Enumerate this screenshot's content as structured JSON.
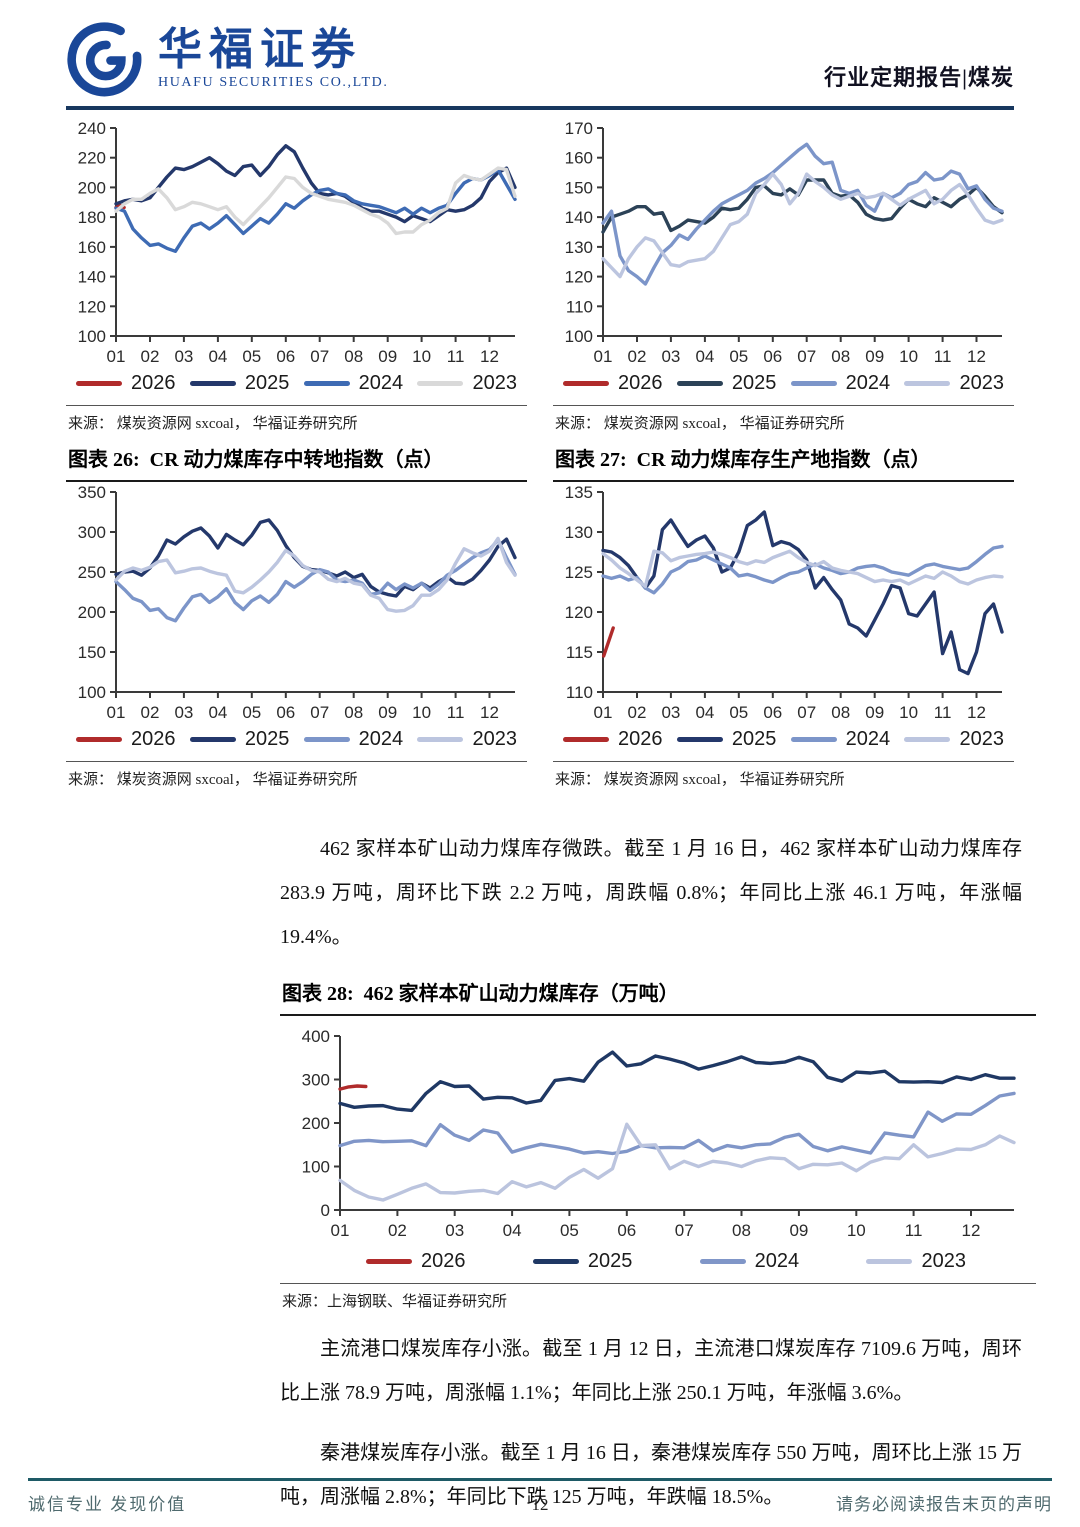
{
  "header": {
    "logo_title": "华福证券",
    "logo_subtitle": "HUAFU SECURITIES CO.,LTD.",
    "report_tag": "行业定期报告|煤炭",
    "brand_color": "#1A4798"
  },
  "paragraphs": {
    "mine_inventory": "462 家样本矿山动力煤库存微跌。截至 1 月 16 日，462 家样本矿山动力煤库存 283.9 万吨，周环比下跌 2.2 万吨，周跌幅 0.8%；年同比上涨 46.1 万吨，年涨幅 19.4%。",
    "port_inventory": "主流港口煤炭库存小涨。截至 1 月 12 日，主流港口煤炭库存 7109.6 万吨，周环比上涨 78.9 万吨，周涨幅 1.1%；年同比上涨 250.1 万吨，年涨幅 3.6%。",
    "qinport_inventory": "秦港煤炭库存小涨。截至 1 月 16 日，秦港煤炭库存 550 万吨，周环比上涨 15 万吨，周涨幅 2.8%；年同比下跌 125 万吨，年跌幅 18.5%。"
  },
  "footer": {
    "left": "诚信专业 发现价值",
    "page": "12",
    "right": "请务必阅读报告末页的声明"
  },
  "chart_data": [
    {
      "type": "line",
      "figure_label": "",
      "title": "",
      "source": "来源： 煤炭资源网 sxcoal， 华福证券研究所",
      "ylim": [
        100,
        240
      ],
      "yticks": [
        100,
        120,
        140,
        160,
        180,
        200,
        220,
        240
      ],
      "x_range": [
        1,
        12.75
      ],
      "xtick_labels": [
        "01",
        "02",
        "03",
        "04",
        "05",
        "06",
        "07",
        "08",
        "09",
        "10",
        "11",
        "12"
      ],
      "legend_position": "bottom",
      "grid": false,
      "series": [
        {
          "name": "2026",
          "color": "#B02B2B",
          "x": [
            1.0,
            1.12,
            1.24
          ],
          "values": [
            186.5,
            188,
            186.5
          ]
        },
        {
          "name": "2025",
          "color": "#24386B",
          "x_start": 1.0,
          "x_step": 0.25,
          "values": [
            189,
            191,
            192,
            191,
            193,
            200,
            207,
            213,
            212,
            214,
            217,
            220,
            216,
            211,
            208,
            214,
            215,
            208,
            214,
            222,
            228,
            224,
            213,
            203,
            196,
            195,
            196,
            194,
            190,
            186,
            184,
            184,
            182,
            180,
            177,
            181,
            179,
            177,
            181,
            185,
            184,
            185,
            188,
            193,
            204,
            210,
            213,
            200
          ]
        },
        {
          "name": "2024",
          "color": "#3E6BB4",
          "x_start": 1.0,
          "x_step": 0.25,
          "values": [
            186,
            184,
            172,
            166,
            161,
            162,
            159,
            157,
            166,
            174,
            176,
            172,
            176,
            181,
            175,
            169,
            174,
            179,
            176,
            182,
            189,
            186,
            191,
            195,
            198,
            199,
            196,
            195,
            191,
            189,
            188,
            187,
            185,
            183,
            186,
            182,
            186,
            183,
            186,
            188,
            196,
            203,
            206,
            205,
            208,
            212,
            202,
            192
          ]
        },
        {
          "name": "2023",
          "color": "#D9D9D9",
          "x_start": 1.0,
          "x_step": 0.25,
          "values": [
            184,
            189,
            192,
            192,
            196,
            199,
            193,
            185,
            187,
            190,
            189,
            187,
            185,
            187,
            180,
            175,
            181,
            187,
            193,
            200,
            207,
            206,
            200,
            196,
            194,
            192,
            191,
            190,
            188,
            185,
            182,
            180,
            176,
            169,
            170,
            170,
            175,
            178,
            183,
            186,
            203,
            208,
            206,
            205,
            209,
            213,
            212,
            194
          ]
        }
      ]
    },
    {
      "type": "line",
      "figure_label": "",
      "title": "",
      "source": "来源： 煤炭资源网 sxcoal， 华福证券研究所",
      "ylim": [
        100,
        170
      ],
      "yticks": [
        100,
        110,
        120,
        130,
        140,
        150,
        160,
        170
      ],
      "x_range": [
        1,
        12.75
      ],
      "xtick_labels": [
        "01",
        "02",
        "03",
        "04",
        "05",
        "06",
        "07",
        "08",
        "09",
        "10",
        "11",
        "12"
      ],
      "legend_position": "bottom",
      "grid": false,
      "series": [
        {
          "name": "2026",
          "color": "#B02B2B",
          "x": [],
          "values": []
        },
        {
          "name": "2025",
          "color": "#2C4257",
          "x_start": 1.0,
          "x_step": 0.25,
          "values": [
            135,
            140,
            141,
            142,
            143.5,
            143.5,
            141,
            141.5,
            135.5,
            137,
            139,
            138.5,
            138,
            140,
            143,
            142.5,
            143,
            146,
            150,
            150.5,
            148,
            147.5,
            149.5,
            147.5,
            152.5,
            152.5,
            152.5,
            148,
            147,
            147.5,
            145,
            141,
            139.5,
            139,
            139.5,
            143,
            146,
            144.5,
            143.5,
            146.5,
            145,
            143.5,
            146,
            147.5,
            150,
            147,
            143.5,
            141.5
          ]
        },
        {
          "name": "2024",
          "color": "#7C95C9",
          "x_start": 1.0,
          "x_step": 0.25,
          "values": [
            138,
            142,
            127,
            122,
            120,
            117.5,
            123,
            128,
            130.5,
            134,
            132.5,
            136,
            139,
            142,
            144.5,
            146,
            147.5,
            149,
            151.5,
            153,
            155,
            157.5,
            160,
            162.5,
            164.5,
            160.5,
            158,
            158.5,
            149,
            148,
            149,
            144,
            142,
            148,
            146.5,
            148,
            151,
            152,
            155,
            152.5,
            153,
            155.5,
            154.5,
            149.5,
            150.5,
            146,
            143,
            142
          ]
        },
        {
          "name": "2023",
          "color": "#BCC5DF",
          "x_start": 1.0,
          "x_step": 0.25,
          "values": [
            126,
            123,
            120,
            126,
            130,
            133,
            132,
            128,
            124,
            123.5,
            125,
            125.5,
            126,
            128.5,
            133,
            137.5,
            138.5,
            141,
            148,
            151,
            154.5,
            151,
            144.5,
            148,
            154.5,
            152,
            150,
            147.5,
            146,
            147,
            148,
            146.5,
            147,
            148,
            146,
            144,
            146,
            147.5,
            149,
            144.5,
            146,
            149,
            151,
            147.5,
            143,
            139,
            138,
            139
          ]
        }
      ]
    },
    {
      "type": "line",
      "figure_label": "图表 26:",
      "title": "CR 动力煤库存中转地指数（点）",
      "source": "来源： 煤炭资源网 sxcoal， 华福证券研究所",
      "ylim": [
        100,
        350
      ],
      "yticks": [
        100,
        150,
        200,
        250,
        300,
        350
      ],
      "x_range": [
        1,
        12.75
      ],
      "xtick_labels": [
        "01",
        "02",
        "03",
        "04",
        "05",
        "06",
        "07",
        "08",
        "09",
        "10",
        "11",
        "12"
      ],
      "legend_position": "bottom",
      "grid": false,
      "series": [
        {
          "name": "2026",
          "color": "#B02B2B",
          "x": [],
          "values": []
        },
        {
          "name": "2025",
          "color": "#24386B",
          "x_start": 1.0,
          "x_step": 0.25,
          "values": [
            247,
            250,
            251,
            246,
            255,
            270,
            290,
            285,
            294,
            301,
            305,
            295,
            280,
            297,
            290,
            284,
            296,
            312,
            315,
            302,
            283,
            268,
            257,
            253,
            252,
            249,
            245,
            250,
            243,
            247,
            232,
            225,
            222,
            220,
            232,
            228,
            236,
            230,
            238,
            244,
            236,
            235,
            241,
            252,
            265,
            282,
            291,
            268
          ]
        },
        {
          "name": "2024",
          "color": "#7C95C9",
          "x_start": 1.0,
          "x_step": 0.25,
          "values": [
            238,
            228,
            217,
            213,
            202,
            204,
            193,
            189,
            205,
            219,
            222,
            212,
            219,
            229,
            212,
            203,
            214,
            220,
            212,
            222,
            238,
            231,
            238,
            247,
            253,
            250,
            240,
            238,
            240,
            236,
            222,
            224,
            236,
            228,
            235,
            230,
            236,
            227,
            235,
            246,
            252,
            260,
            268,
            274,
            278,
            290,
            268,
            247
          ]
        },
        {
          "name": "2023",
          "color": "#BCC5DF",
          "x_start": 1.0,
          "x_step": 0.25,
          "values": [
            240,
            251,
            255,
            252,
            256,
            263,
            265,
            249,
            251,
            254,
            255,
            251,
            248,
            246,
            226,
            224,
            231,
            240,
            250,
            262,
            277,
            270,
            258,
            252,
            250,
            241,
            238,
            242,
            236,
            234,
            221,
            217,
            203,
            201,
            202,
            208,
            221,
            221,
            228,
            240,
            261,
            279,
            274,
            270,
            276,
            292,
            262,
            246
          ]
        }
      ]
    },
    {
      "type": "line",
      "figure_label": "图表 27:",
      "title": "CR 动力煤库存生产地指数（点）",
      "source": "来源： 煤炭资源网 sxcoal， 华福证券研究所",
      "ylim": [
        110,
        135
      ],
      "yticks": [
        110,
        115,
        120,
        125,
        130,
        135
      ],
      "x_range": [
        1,
        12.75
      ],
      "xtick_labels": [
        "01",
        "02",
        "03",
        "04",
        "05",
        "06",
        "07",
        "08",
        "09",
        "10",
        "11",
        "12"
      ],
      "legend_position": "bottom",
      "grid": false,
      "series": [
        {
          "name": "2026",
          "color": "#B02B2B",
          "x": [
            1.02,
            1.3
          ],
          "values": [
            114.5,
            118
          ]
        },
        {
          "name": "2025",
          "color": "#24386B",
          "x_start": 1.0,
          "x_step": 0.25,
          "values": [
            127.7,
            127.5,
            126.8,
            125.8,
            124.3,
            123,
            124.5,
            130.3,
            131.5,
            129.8,
            128.2,
            129,
            129.5,
            128,
            125,
            125.5,
            127.5,
            130.8,
            131.5,
            132.5,
            128.3,
            128.8,
            128.5,
            127.8,
            126.5,
            123,
            124.3,
            122.8,
            121.5,
            118.5,
            118,
            117,
            119,
            121,
            123.3,
            123,
            119.8,
            119.5,
            121,
            122.5,
            114.8,
            117.5,
            112.8,
            112.3,
            115,
            119.8,
            121,
            117.5
          ]
        },
        {
          "name": "2024",
          "color": "#7C95C9",
          "x_start": 1.0,
          "x_step": 0.25,
          "values": [
            124.5,
            124.2,
            124.5,
            124,
            124.3,
            123,
            122.4,
            123.5,
            125,
            125.5,
            126.3,
            126.5,
            127,
            126.5,
            126,
            125.5,
            124.5,
            124.7,
            124.4,
            124,
            123.7,
            124.3,
            124.8,
            125,
            125.5,
            126,
            125.5,
            125.2,
            124.8,
            125,
            125.5,
            125.7,
            125.8,
            125.5,
            125,
            124.8,
            124.6,
            125.2,
            125.8,
            126,
            125.7,
            125.5,
            125.3,
            125.5,
            126.3,
            127.2,
            128,
            128.2
          ]
        },
        {
          "name": "2023",
          "color": "#BCC5DF",
          "x_start": 1.0,
          "x_step": 0.25,
          "values": [
            127.3,
            126.5,
            125.5,
            124.8,
            124,
            123.2,
            127.6,
            127.4,
            126.4,
            126.8,
            127,
            127.2,
            127.3,
            127.5,
            127.2,
            126.8,
            126.3,
            126,
            126.4,
            126.2,
            126.8,
            127.2,
            127.6,
            126.8,
            126.2,
            125.8,
            126.3,
            125.5,
            125.2,
            125,
            124.8,
            124.3,
            123.8,
            124,
            123.8,
            124,
            123.5,
            124,
            124.5,
            124.2,
            125,
            124.5,
            123.8,
            123.5,
            124,
            124.3,
            124.5,
            124.4
          ]
        }
      ]
    },
    {
      "type": "line",
      "figure_label": "图表 28:",
      "title": "462 家样本矿山动力煤库存（万吨）",
      "source": "来源：上海钢联、华福证券研究所",
      "ylim": [
        0,
        400
      ],
      "yticks": [
        0,
        100,
        200,
        300,
        400
      ],
      "x_range": [
        1,
        12.75
      ],
      "xtick_labels": [
        "01",
        "02",
        "03",
        "04",
        "05",
        "06",
        "07",
        "08",
        "09",
        "10",
        "11",
        "12"
      ],
      "legend_position": "bottom",
      "grid": false,
      "series": [
        {
          "name": "2026",
          "color": "#B02B2B",
          "x": [
            1.0,
            1.15,
            1.3,
            1.45
          ],
          "values": [
            278,
            283,
            285,
            284
          ]
        },
        {
          "name": "2025",
          "color": "#1F3864",
          "x_start": 1.0,
          "x_step": 0.25,
          "values": [
            245,
            236,
            239,
            240,
            232,
            229,
            268,
            295,
            284,
            285,
            255,
            259,
            258,
            246,
            252,
            298,
            302,
            296,
            340,
            363,
            331,
            336,
            354,
            347,
            338,
            324,
            332,
            341,
            352,
            339,
            337,
            340,
            351,
            341,
            305,
            296,
            317,
            315,
            319,
            295,
            294,
            295,
            293,
            306,
            300,
            311,
            303,
            303
          ]
        },
        {
          "name": "2024",
          "color": "#8096C8",
          "x_start": 1.0,
          "x_step": 0.25,
          "values": [
            148,
            158,
            160,
            157,
            158,
            159,
            148,
            196,
            172,
            160,
            184,
            177,
            133,
            143,
            151,
            146,
            140,
            131,
            134,
            130,
            135,
            148,
            143,
            144,
            143,
            160,
            136,
            148,
            143,
            150,
            152,
            167,
            174,
            146,
            136,
            145,
            138,
            131,
            177,
            172,
            168,
            225,
            204,
            221,
            220,
            240,
            262,
            268
          ]
        },
        {
          "name": "2023",
          "color": "#BBC4DE",
          "x_start": 1.0,
          "x_step": 0.25,
          "values": [
            68,
            45,
            30,
            23,
            36,
            50,
            60,
            40,
            39,
            43,
            45,
            38,
            65,
            53,
            63,
            50,
            75,
            93,
            73,
            95,
            197,
            148,
            150,
            95,
            112,
            100,
            112,
            108,
            100,
            113,
            120,
            118,
            95,
            105,
            104,
            108,
            90,
            110,
            120,
            118,
            150,
            122,
            130,
            140,
            139,
            150,
            170,
            155
          ]
        }
      ]
    }
  ]
}
